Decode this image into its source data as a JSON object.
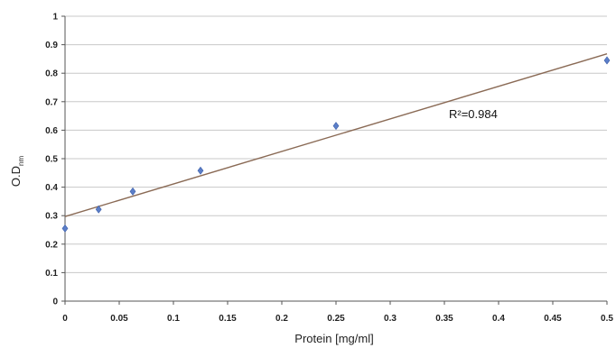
{
  "chart_data": {
    "type": "scatter",
    "xlabel": "Protein [mg/ml]",
    "ylabel_main": "O.D",
    "ylabel_sub": "nm",
    "xlim": [
      0,
      0.5
    ],
    "ylim": [
      0,
      1
    ],
    "x_ticks": [
      "0",
      "0.05",
      "0.1",
      "0.15",
      "0.2",
      "0.25",
      "0.3",
      "0.35",
      "0.4",
      "0.45",
      "0.5"
    ],
    "y_ticks": [
      "0",
      "0.1",
      "0.2",
      "0.3",
      "0.4",
      "0.5",
      "0.6",
      "0.7",
      "0.8",
      "0.9",
      "1"
    ],
    "grid": "horizontal",
    "points": [
      {
        "x": 0,
        "y": 0.255
      },
      {
        "x": 0.031,
        "y": 0.322
      },
      {
        "x": 0.0625,
        "y": 0.385
      },
      {
        "x": 0.125,
        "y": 0.458
      },
      {
        "x": 0.25,
        "y": 0.615
      },
      {
        "x": 0.5,
        "y": 0.845
      }
    ],
    "trendline": {
      "x": [
        0,
        0.5
      ],
      "y": [
        0.297,
        0.868
      ]
    },
    "annotation": "R²=0.984",
    "colors": {
      "points": "#5b7ec9",
      "trendline": "#8a6a55",
      "grid": "#c8c8c8",
      "axis": "#555555"
    }
  }
}
